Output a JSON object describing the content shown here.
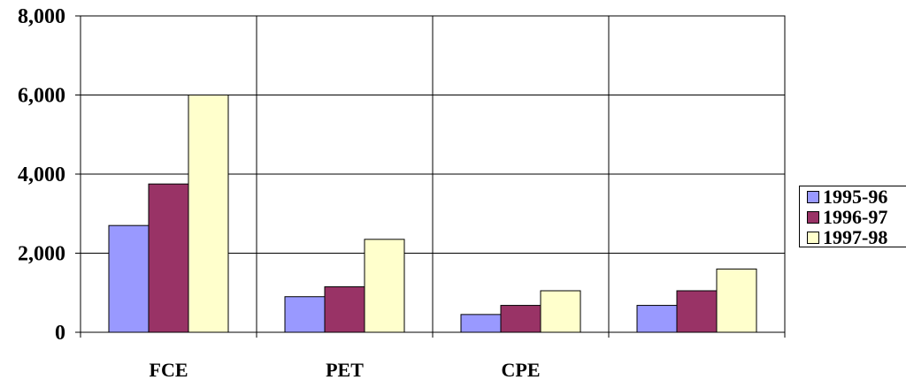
{
  "chart_data": {
    "type": "bar",
    "categories": [
      "FCE",
      "PET",
      "CPE",
      ""
    ],
    "series": [
      {
        "name": "1995-96",
        "color": "#9999ff",
        "values": [
          2700,
          900,
          450,
          680
        ]
      },
      {
        "name": "1996-97",
        "color": "#993366",
        "values": [
          3750,
          1150,
          680,
          1050
        ]
      },
      {
        "name": "1997-98",
        "color": "#ffffcc",
        "values": [
          6000,
          2350,
          1050,
          1600
        ]
      }
    ],
    "y_ticks": [
      "0",
      "2,000",
      "4,000",
      "6,000",
      "8,000"
    ],
    "ylim": [
      0,
      8000
    ],
    "grid": true,
    "legend": "right"
  }
}
